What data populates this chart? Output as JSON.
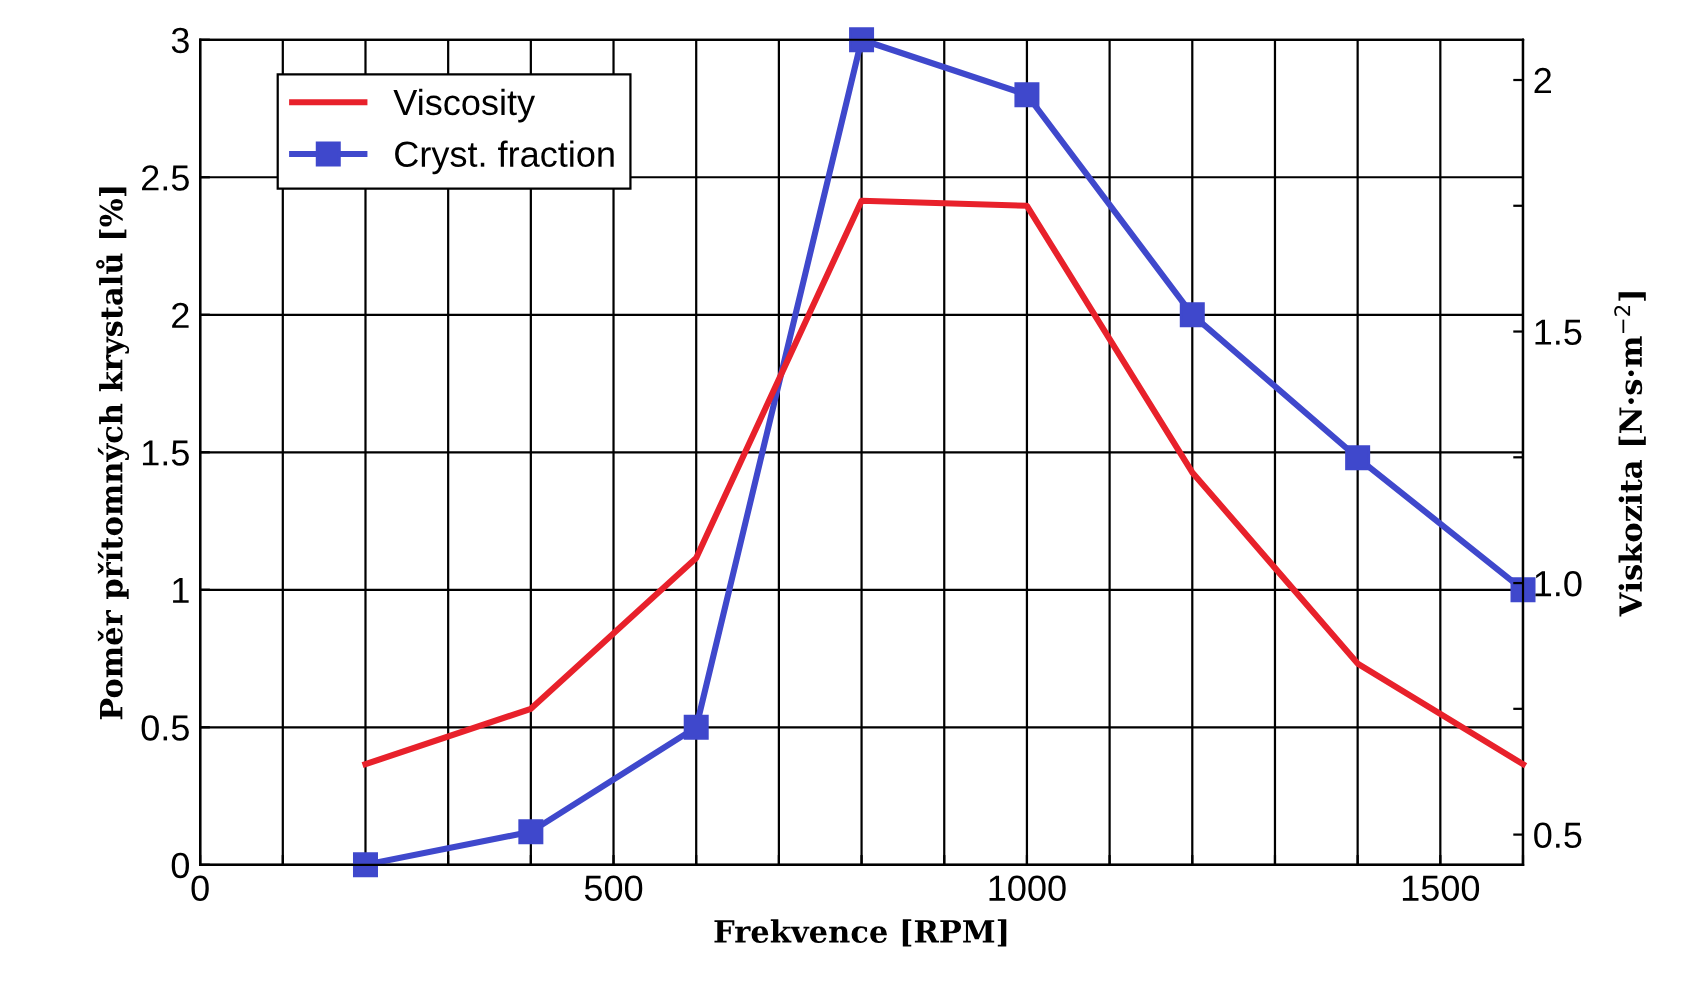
{
  "chart_data": {
    "type": "line",
    "xlabel": "Frekvence [RPM]",
    "ylabel": "Poměr přítomných krystalů [%]",
    "y2label": "Viskozita [N·s·m$^{−2}$]",
    "x": [
      200,
      400,
      600,
      800,
      1000,
      1200,
      1400,
      1600
    ],
    "series": [
      {
        "name": "Viscosity",
        "color": "#e8212b",
        "axis": "y2",
        "marker": "none",
        "values": [
          0.64,
          0.75,
          1.05,
          1.76,
          1.75,
          1.22,
          0.84,
          0.64
        ]
      },
      {
        "name": "Cryst. fraction",
        "color": "#3f48cc",
        "marker": "square",
        "values": [
          0,
          0.12,
          0.5,
          3.0,
          2.8,
          2.0,
          1.48,
          1.0
        ]
      }
    ],
    "xlim": [
      0,
      1600
    ],
    "xticks": [
      0,
      {
        "value": 100,
        "label": null
      },
      {
        "value": 200,
        "label": null
      },
      {
        "value": 300,
        "label": null
      },
      {
        "value": 400,
        "label": null
      },
      500,
      {
        "value": 600,
        "label": null
      },
      {
        "value": 700,
        "label": null
      },
      {
        "value": 800,
        "label": null
      },
      {
        "value": 900,
        "label": null
      },
      1000,
      {
        "value": 1100,
        "label": null
      },
      {
        "value": 1200,
        "label": null
      },
      {
        "value": 1300,
        "label": null
      },
      {
        "value": 1400,
        "label": null
      },
      1500,
      {
        "value": 1600,
        "label": null
      }
    ],
    "ylim": [
      0,
      3
    ],
    "yticks": [
      0,
      0.5,
      1,
      1.5,
      2,
      2.5,
      3
    ],
    "y2lim": [
      0.44,
      2.08
    ],
    "y2ticks": [
      {
        "value": 0.5,
        "label": "0.5"
      },
      {
        "value": 0.75,
        "label": null
      },
      {
        "value": 1.0,
        "label": "1.0"
      },
      {
        "value": 1.25,
        "label": null
      },
      {
        "value": 1.5,
        "label": "1.5"
      },
      {
        "value": 1.75,
        "label": null
      },
      {
        "value": 2,
        "label": "2"
      }
    ],
    "grid": true,
    "legend": "top left"
  }
}
